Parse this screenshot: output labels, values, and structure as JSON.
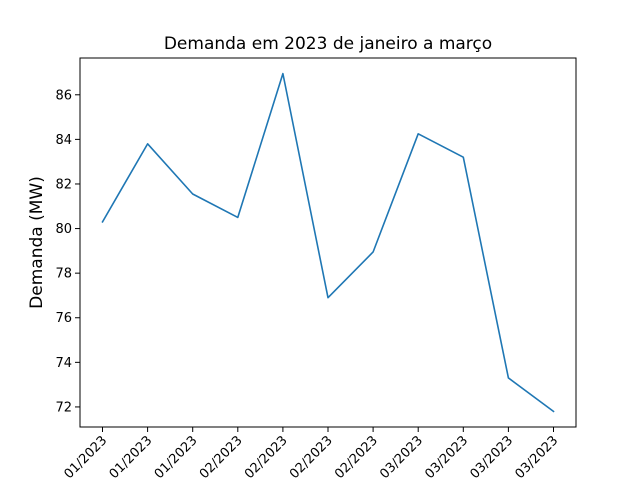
{
  "chart_data": {
    "type": "line",
    "title": "Demanda em 2023 de janeiro a março",
    "xlabel": "",
    "ylabel": "Demanda (MW)",
    "categories": [
      "01/2023",
      "01/2023",
      "01/2023",
      "02/2023",
      "02/2023",
      "02/2023",
      "02/2023",
      "03/2023",
      "03/2023",
      "03/2023",
      "03/2023"
    ],
    "series": [
      {
        "color": "#1f77b4",
        "values": [
          80.3,
          83.8,
          81.55,
          80.5,
          86.95,
          76.9,
          78.95,
          84.25,
          83.2,
          73.3,
          71.8
        ]
      }
    ],
    "ylim": [
      71.1,
      87.65
    ],
    "yticks": [
      72,
      74,
      76,
      78,
      80,
      82,
      84,
      86
    ],
    "ytick_labels": [
      "72",
      "74",
      "76",
      "78",
      "80",
      "82",
      "84",
      "86"
    ],
    "grid": false
  }
}
